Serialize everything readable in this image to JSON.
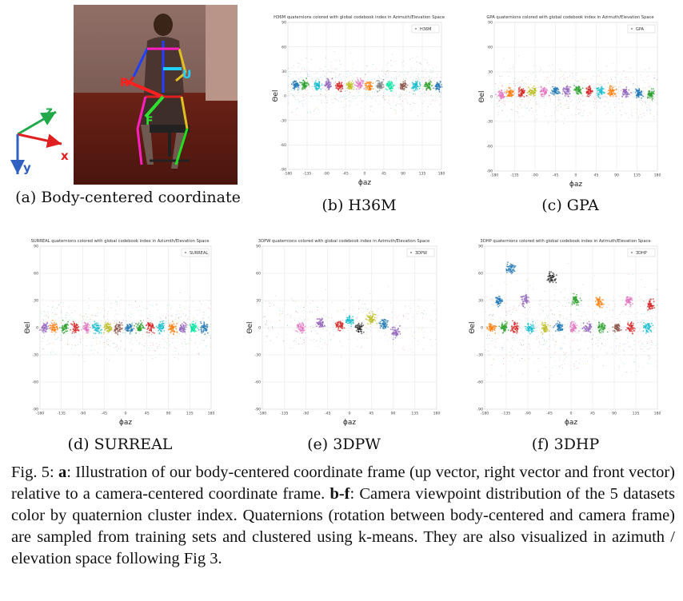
{
  "figure": {
    "panels": [
      {
        "id": "a",
        "caption": "(a) Body-centered coordinate"
      },
      {
        "id": "b",
        "caption": "(b) H36M"
      },
      {
        "id": "c",
        "caption": "(c) GPA"
      },
      {
        "id": "d",
        "caption": "(d) SURREAL"
      },
      {
        "id": "e",
        "caption": "(e) 3DPW"
      },
      {
        "id": "f",
        "caption": "(f) 3DHP"
      }
    ],
    "coord_labels": {
      "z": "z",
      "x": "x",
      "y": "y",
      "front": "F",
      "up": "U",
      "right": "R"
    },
    "caption": {
      "label": "Fig. 5:",
      "a_bold": "a",
      "a_text": ": Illustration of our body-centered coordinate frame (up vector, right vector and front vector) relative to a camera-centered coordinate frame. ",
      "bf_bold": "b-f",
      "bf_text": ": Camera viewpoint distribution of the 5 datasets color by quaternion cluster index. Quaternions (rotation between body-centered and camera frame) are sampled from training sets and clustered using k-means. They are also visualized in azimuth / elevation space following Fig 3."
    }
  },
  "chart_data": [
    {
      "type": "scatter",
      "title": "H36M quaternions colored with global codebook index in Azimuth/Elevation Space",
      "legend": "H36M",
      "legend_position": "top-right",
      "xlabel": "ϕaz",
      "ylabel": "Θel",
      "xlim": [
        -180,
        180
      ],
      "ylim": [
        -90,
        90
      ],
      "xticks": [
        -180,
        -135,
        -90,
        -45,
        0,
        45,
        90,
        135,
        180
      ],
      "yticks": [
        -90,
        -60,
        -30,
        0,
        30,
        60,
        90
      ],
      "grid": true,
      "band_center_el": 12,
      "clusters": [
        {
          "az": -162,
          "el": 14,
          "color": "#1f77b4"
        },
        {
          "az": -140,
          "el": 14,
          "color": "#2ca02c"
        },
        {
          "az": -110,
          "el": 13,
          "color": "#17becf"
        },
        {
          "az": -85,
          "el": 14,
          "color": "#9467bd"
        },
        {
          "az": -60,
          "el": 12,
          "color": "#d62728"
        },
        {
          "az": -35,
          "el": 13,
          "color": "#bcbd22"
        },
        {
          "az": -12,
          "el": 14,
          "color": "#e377c2"
        },
        {
          "az": 10,
          "el": 12,
          "color": "#ff7f0e"
        },
        {
          "az": 35,
          "el": 13,
          "color": "#7f7f7f"
        },
        {
          "az": 60,
          "el": 12,
          "color": "#00e5a0"
        },
        {
          "az": 90,
          "el": 13,
          "color": "#8c564b"
        },
        {
          "az": 120,
          "el": 12,
          "color": "#17becf"
        },
        {
          "az": 150,
          "el": 12,
          "color": "#2ca02c"
        },
        {
          "az": 172,
          "el": 12,
          "color": "#1f77b4"
        }
      ]
    },
    {
      "type": "scatter",
      "title": "GPA quaternions colored with global codebook index in Azimuth/Elevation Space",
      "legend": "GPA",
      "legend_position": "top-right",
      "xlabel": "ϕaz",
      "ylabel": "Θel",
      "xlim": [
        -180,
        180
      ],
      "ylim": [
        -90,
        90
      ],
      "xticks": [
        -180,
        -135,
        -90,
        -45,
        0,
        45,
        90,
        135,
        180
      ],
      "yticks": [
        -90,
        -60,
        -30,
        0,
        30,
        60,
        90
      ],
      "grid": true,
      "band_center_el": 5,
      "clusters": [
        {
          "az": -165,
          "el": 2,
          "color": "#e377c2"
        },
        {
          "az": -145,
          "el": 4,
          "color": "#ff7f0e"
        },
        {
          "az": -120,
          "el": 5,
          "color": "#d62728"
        },
        {
          "az": -95,
          "el": 6,
          "color": "#bcbd22"
        },
        {
          "az": -70,
          "el": 6,
          "color": "#e377c2"
        },
        {
          "az": -45,
          "el": 7,
          "color": "#1f77b4"
        },
        {
          "az": -20,
          "el": 7,
          "color": "#9467bd"
        },
        {
          "az": 5,
          "el": 8,
          "color": "#2ca02c"
        },
        {
          "az": 30,
          "el": 7,
          "color": "#d62728"
        },
        {
          "az": 55,
          "el": 6,
          "color": "#17becf"
        },
        {
          "az": 80,
          "el": 6,
          "color": "#ff7f0e"
        },
        {
          "az": 110,
          "el": 5,
          "color": "#9467bd"
        },
        {
          "az": 140,
          "el": 4,
          "color": "#1f77b4"
        },
        {
          "az": 165,
          "el": 3,
          "color": "#2ca02c"
        }
      ]
    },
    {
      "type": "scatter",
      "title": "SURREAL quaternions colored with global codebook index in Aziumth/Elevation Space",
      "legend": "SURREAL",
      "legend_position": "top-right",
      "xlabel": "ϕaz",
      "ylabel": "Θel",
      "xlim": [
        -180,
        180
      ],
      "ylim": [
        -90,
        90
      ],
      "xticks": [
        -180,
        -135,
        -90,
        -45,
        0,
        45,
        90,
        135,
        180
      ],
      "yticks": [
        -90,
        -60,
        -30,
        0,
        30,
        60,
        90
      ],
      "grid": true,
      "band_center_el": 0,
      "clusters": [
        {
          "az": -170,
          "el": 0,
          "color": "#9467bd"
        },
        {
          "az": -150,
          "el": 0,
          "color": "#ff7f0e"
        },
        {
          "az": -128,
          "el": 0,
          "color": "#2ca02c"
        },
        {
          "az": -105,
          "el": 0,
          "color": "#d62728"
        },
        {
          "az": -82,
          "el": 0,
          "color": "#e377c2"
        },
        {
          "az": -60,
          "el": 0,
          "color": "#17becf"
        },
        {
          "az": -38,
          "el": 0,
          "color": "#bcbd22"
        },
        {
          "az": -15,
          "el": 0,
          "color": "#8c564b"
        },
        {
          "az": 8,
          "el": 0,
          "color": "#1f77b4"
        },
        {
          "az": 30,
          "el": 0,
          "color": "#2ca02c"
        },
        {
          "az": 52,
          "el": 0,
          "color": "#d62728"
        },
        {
          "az": 75,
          "el": 0,
          "color": "#17becf"
        },
        {
          "az": 98,
          "el": 0,
          "color": "#ff7f0e"
        },
        {
          "az": 120,
          "el": 0,
          "color": "#9467bd"
        },
        {
          "az": 142,
          "el": 0,
          "color": "#00e5a0"
        },
        {
          "az": 165,
          "el": 0,
          "color": "#1f77b4"
        }
      ]
    },
    {
      "type": "scatter",
      "title": "3DPW quaternions colored with global codebook index in Azimuth/Elevation Space",
      "legend": "3DPW",
      "legend_position": "top-right",
      "xlabel": "ϕaz",
      "ylabel": "Θel",
      "xlim": [
        -180,
        180
      ],
      "ylim": [
        -90,
        90
      ],
      "xticks": [
        -180,
        -135,
        -90,
        -45,
        0,
        45,
        90,
        135,
        180
      ],
      "yticks": [
        -90,
        -60,
        -30,
        0,
        30,
        60,
        90
      ],
      "grid": true,
      "band_center_el": 5,
      "clusters": [
        {
          "az": -60,
          "el": 5,
          "color": "#9467bd"
        },
        {
          "az": -20,
          "el": 3,
          "color": "#d62728"
        },
        {
          "az": 0,
          "el": 8,
          "color": "#17becf"
        },
        {
          "az": 20,
          "el": 0,
          "color": "#2b2b2b"
        },
        {
          "az": 45,
          "el": 10,
          "color": "#bcbd22"
        },
        {
          "az": 70,
          "el": 4,
          "color": "#1f77b4"
        },
        {
          "az": 95,
          "el": -5,
          "color": "#9467bd"
        },
        {
          "az": -100,
          "el": 0,
          "color": "#e377c2"
        }
      ]
    },
    {
      "type": "scatter",
      "title": "3DHP quaternions colored with global codebook index in Azimuth/Elevation Space",
      "legend": "3DHP",
      "legend_position": "top-right",
      "xlabel": "ϕaz",
      "ylabel": "Θel",
      "xlim": [
        -180,
        180
      ],
      "ylim": [
        -90,
        90
      ],
      "xticks": [
        -180,
        -135,
        -90,
        -45,
        0,
        45,
        90,
        135,
        180
      ],
      "yticks": [
        -90,
        -60,
        -30,
        0,
        30,
        60,
        90
      ],
      "grid": true,
      "band_center_el": 0,
      "clusters": [
        {
          "az": -165,
          "el": 0,
          "color": "#ff7f0e"
        },
        {
          "az": -140,
          "el": 0,
          "color": "#2ca02c"
        },
        {
          "az": -115,
          "el": 0,
          "color": "#d62728"
        },
        {
          "az": -85,
          "el": 0,
          "color": "#17becf"
        },
        {
          "az": -55,
          "el": 0,
          "color": "#bcbd22"
        },
        {
          "az": -25,
          "el": 0,
          "color": "#1f77b4"
        },
        {
          "az": 5,
          "el": 0,
          "color": "#e377c2"
        },
        {
          "az": 35,
          "el": 0,
          "color": "#9467bd"
        },
        {
          "az": 65,
          "el": 0,
          "color": "#2ca02c"
        },
        {
          "az": 95,
          "el": 0,
          "color": "#8c564b"
        },
        {
          "az": 125,
          "el": 0,
          "color": "#d62728"
        },
        {
          "az": 160,
          "el": 0,
          "color": "#17becf"
        },
        {
          "az": -150,
          "el": 30,
          "color": "#1f77b4"
        },
        {
          "az": -95,
          "el": 30,
          "color": "#9467bd"
        },
        {
          "az": -40,
          "el": 55,
          "color": "#2b2b2b"
        },
        {
          "az": 10,
          "el": 30,
          "color": "#2ca02c"
        },
        {
          "az": 60,
          "el": 28,
          "color": "#ff7f0e"
        },
        {
          "az": 120,
          "el": 30,
          "color": "#e377c2"
        },
        {
          "az": 165,
          "el": 25,
          "color": "#d62728"
        },
        {
          "az": -125,
          "el": 65,
          "color": "#1f77b4"
        }
      ]
    }
  ]
}
